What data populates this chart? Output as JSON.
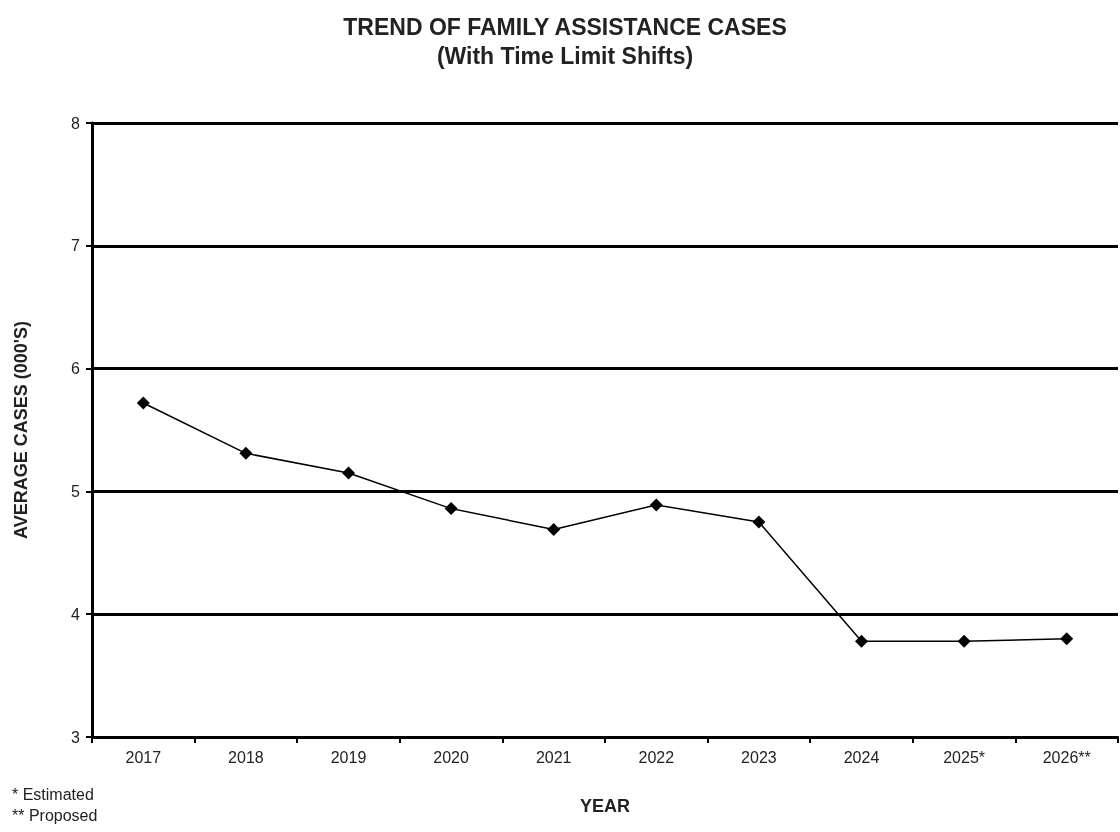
{
  "chart_data": {
    "type": "line",
    "title": "TREND OF FAMILY ASSISTANCE CASES",
    "subtitle": "(With Time Limit Shifts)",
    "xlabel": "YEAR",
    "ylabel": "AVERAGE CASES (000'S)",
    "categories": [
      "2017",
      "2018",
      "2019",
      "2020",
      "2021",
      "2022",
      "2023",
      "2024",
      "2025*",
      "2026**"
    ],
    "series": [
      {
        "color": "#000000",
        "values": [
          5.72,
          5.31,
          5.15,
          4.86,
          4.69,
          4.89,
          4.75,
          3.78,
          3.78,
          3.8
        ]
      }
    ],
    "ylim": [
      3,
      8
    ],
    "yticks": [
      3,
      4,
      5,
      6,
      7,
      8
    ],
    "grid": "y",
    "marker": "diamond",
    "line_style": "solid",
    "annotations": [
      "* Estimated",
      "** Proposed"
    ]
  }
}
